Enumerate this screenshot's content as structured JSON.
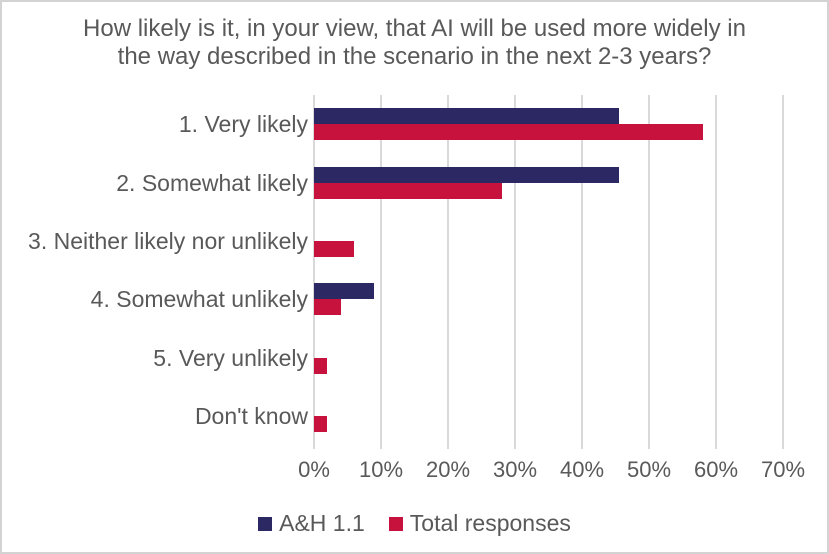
{
  "chart_data": {
    "type": "bar",
    "orientation": "horizontal",
    "title": "How likely is it, in your view, that AI will be used more widely in the way described in the scenario in the next 2-3 years?",
    "title_lines": [
      "How likely is it, in your view, that AI will be used more widely in",
      "the way described in the scenario in the next 2-3 years?"
    ],
    "categories": [
      "1. Very likely",
      "2. Somewhat likely",
      "3. Neither likely nor unlikely",
      "4. Somewhat unlikely",
      "5. Very unlikely",
      "Don't know"
    ],
    "series": [
      {
        "name": "A&H 1.1",
        "color": "#2B2864",
        "values": [
          45.5,
          45.5,
          0,
          9,
          0,
          0
        ]
      },
      {
        "name": "Total responses",
        "color": "#C8123E",
        "values": [
          58,
          28,
          6,
          4,
          2,
          2
        ]
      }
    ],
    "x_ticks": [
      "0%",
      "10%",
      "20%",
      "30%",
      "40%",
      "50%",
      "60%",
      "70%"
    ],
    "xlim": [
      0,
      70
    ],
    "xlabel": "",
    "ylabel": "",
    "grid": "vertical",
    "legend_position": "bottom",
    "colors": {
      "text": "#595959",
      "gridline": "#D9D9D9",
      "frame_border": "#D3D3D3",
      "background": "#FFFFFF"
    }
  }
}
